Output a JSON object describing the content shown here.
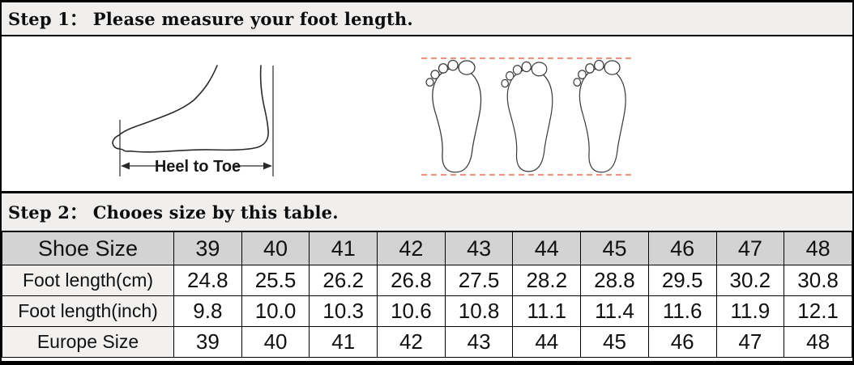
{
  "step1": {
    "title": "Step 1： Please measure your foot length."
  },
  "step2": {
    "title": "Step 2： Chooes size by this table."
  },
  "measure_diagram": {
    "label": "Heel to Toe"
  },
  "size_table": {
    "rows": [
      {
        "label": "Shoe Size",
        "header": true,
        "values": [
          "39",
          "40",
          "41",
          "42",
          "43",
          "44",
          "45",
          "46",
          "47",
          "48"
        ]
      },
      {
        "label": "Foot length(cm)",
        "header": false,
        "values": [
          "24.8",
          "25.5",
          "26.2",
          "26.8",
          "27.5",
          "28.2",
          "28.8",
          "29.5",
          "30.2",
          "30.8"
        ]
      },
      {
        "label": "Foot length(inch)",
        "header": false,
        "values": [
          "9.8",
          "10.0",
          "10.3",
          "10.6",
          "10.8",
          "11.1",
          "11.4",
          "11.6",
          "11.9",
          "12.1"
        ]
      },
      {
        "label": "Europe Size",
        "header": false,
        "values": [
          "39",
          "40",
          "41",
          "42",
          "43",
          "44",
          "45",
          "46",
          "47",
          "48"
        ]
      }
    ]
  },
  "colors": {
    "dashed_line": "#e0714d",
    "band_bg": "#f0efee",
    "header_row_bg": "#d3d3d3",
    "label_cell_bg": "#f2f1f0",
    "border_color": "#000000"
  }
}
